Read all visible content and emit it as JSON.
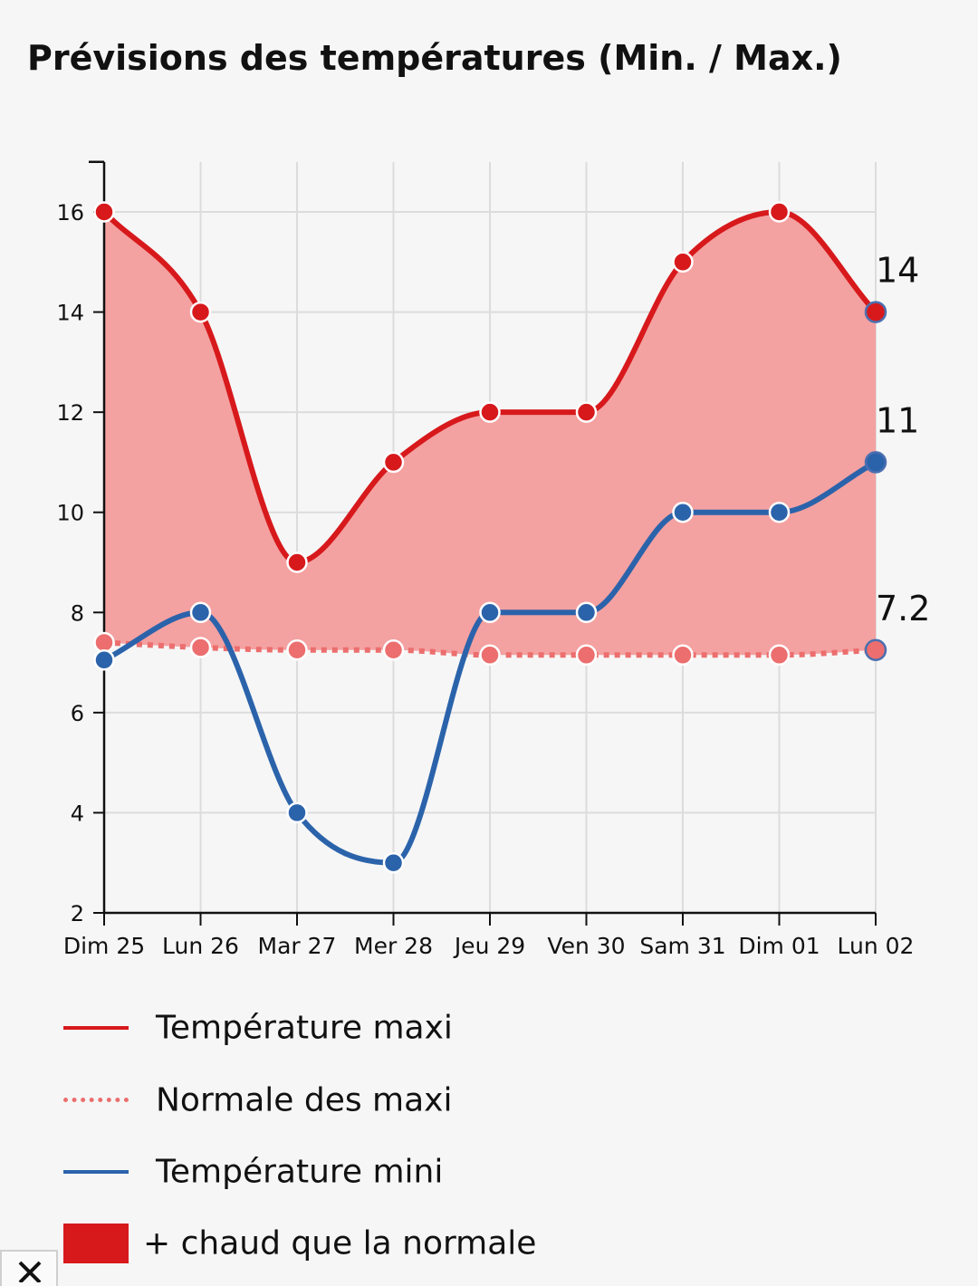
{
  "title": "Prévisions des températures (Min. / Max.)",
  "colors": {
    "max": "#d7191c",
    "normal": "#ec6e6e",
    "min": "#2b63ab",
    "fill": "#f4a1a1",
    "grid": "#dcdcdc",
    "axis": "#111111"
  },
  "chart_data": {
    "type": "line",
    "categories": [
      "Dim 25",
      "Lun 26",
      "Mar 27",
      "Mer 28",
      "Jeu 29",
      "Ven 30",
      "Sam 31",
      "Dim 01",
      "Lun 02"
    ],
    "ylim": [
      2,
      17
    ],
    "yticks": [
      2,
      4,
      6,
      8,
      10,
      12,
      14,
      16
    ],
    "ytick_labels": [
      "2",
      "4",
      "6",
      "8",
      "10",
      "12",
      "14",
      "16"
    ],
    "grid": true,
    "legend_position": "bottom",
    "series": [
      {
        "name": "Température maxi",
        "style": "solid",
        "values": [
          16,
          14,
          9,
          11,
          12,
          12,
          15,
          16,
          14
        ]
      },
      {
        "name": "Normale des maxi",
        "style": "dotted",
        "values": [
          7.4,
          7.3,
          7.25,
          7.25,
          7.15,
          7.15,
          7.15,
          7.15,
          7.25
        ]
      },
      {
        "name": "Température mini",
        "style": "solid",
        "values": [
          7.05,
          8,
          4,
          3,
          8,
          8,
          10,
          10,
          11
        ]
      }
    ],
    "fill_legend": "+ chaud que la normale",
    "end_labels": [
      "14",
      "11",
      "7.2"
    ]
  }
}
